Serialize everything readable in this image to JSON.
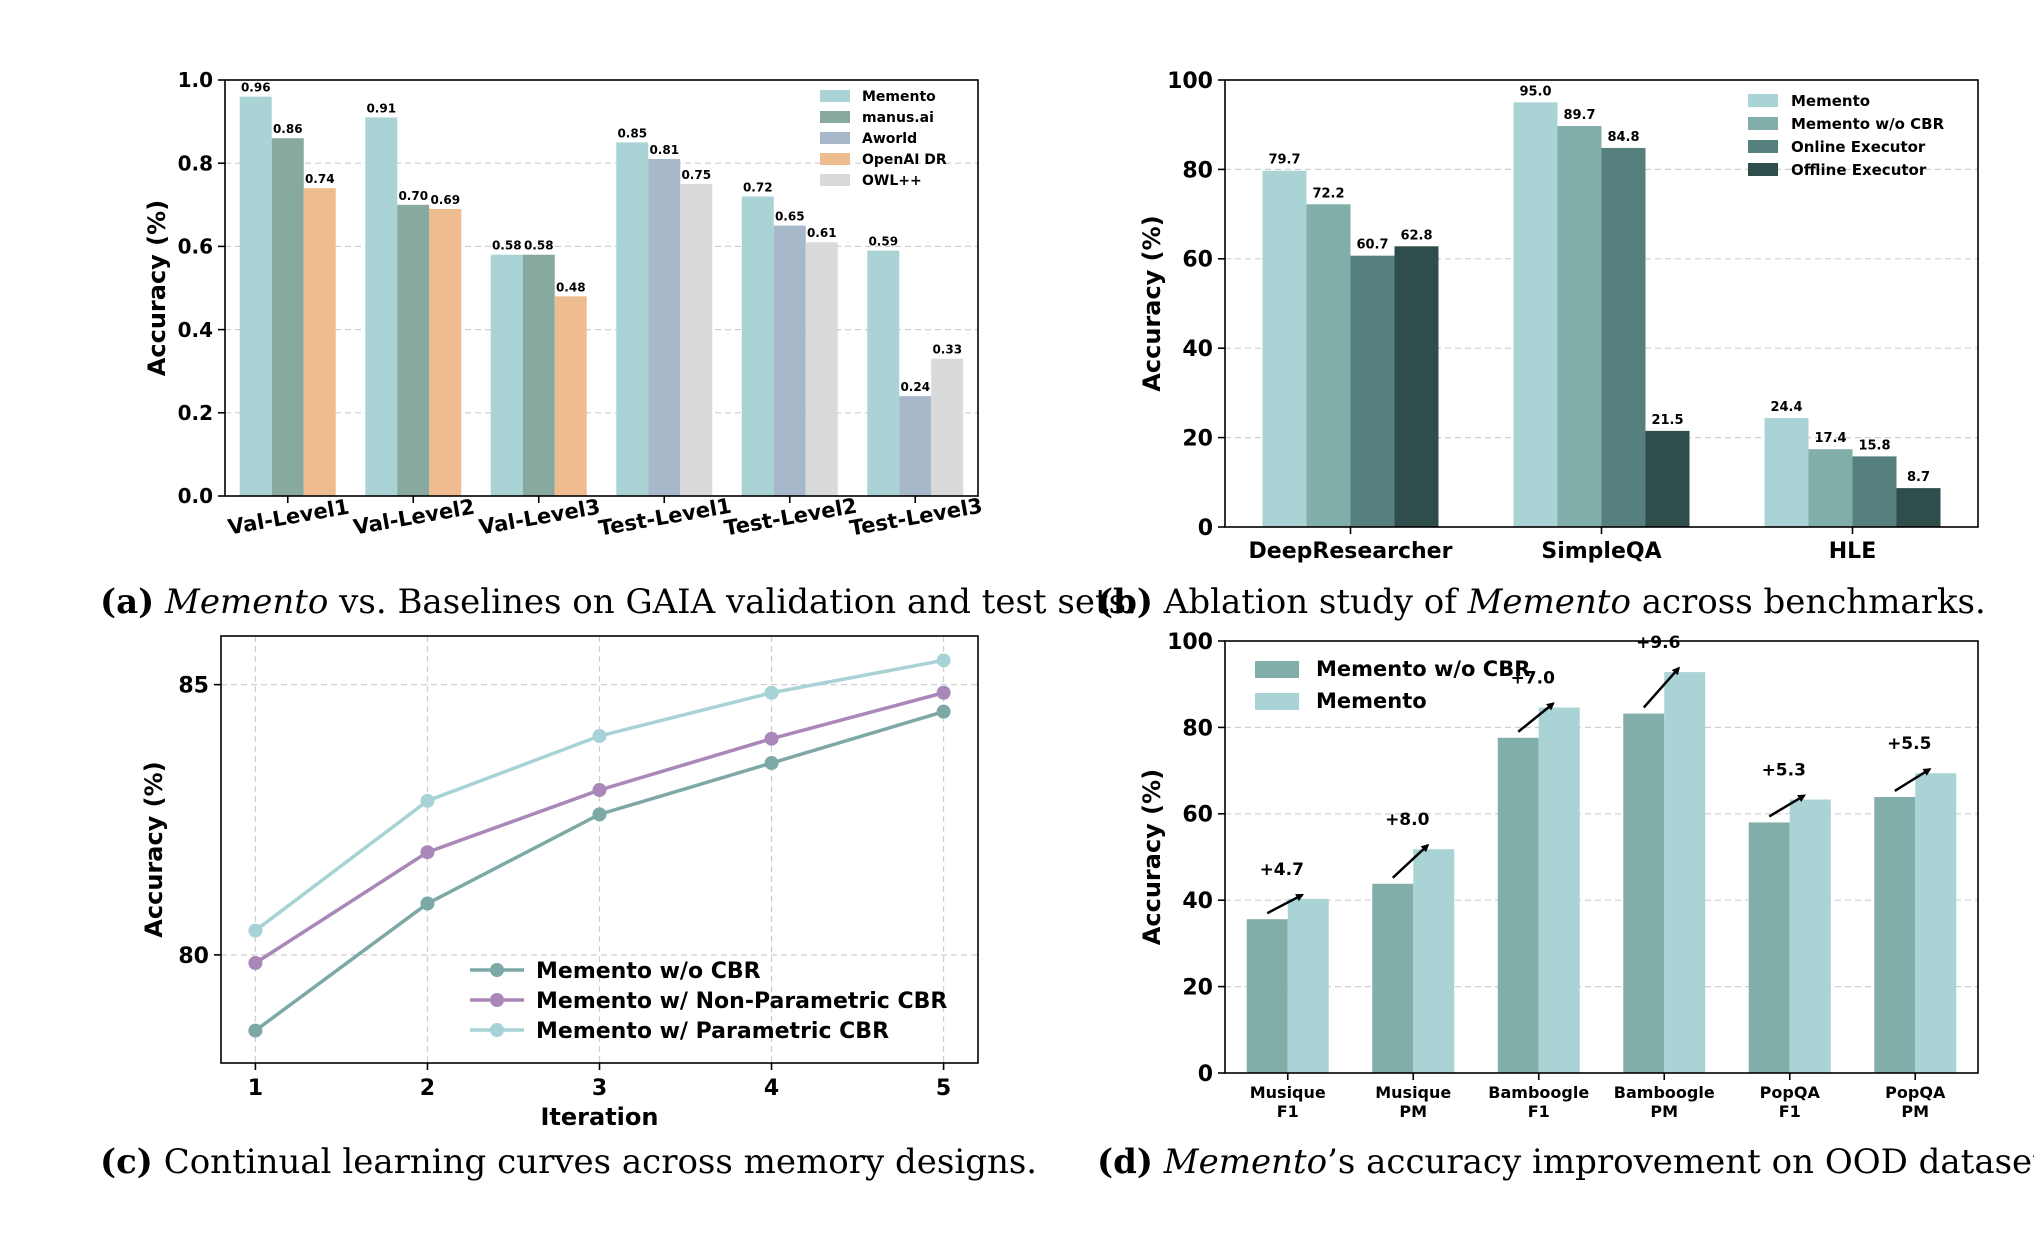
{
  "colors": {
    "memento": "#a9d3d5",
    "manus": "#88a9a0",
    "aworld": "#a6b8c9",
    "openai": "#eebc8f",
    "owl": "#d9dadc",
    "wo_cbr_b": "#82aeaa",
    "online": "#56807d",
    "offline": "#2f4d4b",
    "wo_cbr_d": "#82aeaa",
    "line_wo": "#7ca9a5",
    "line_np": "#a987b8",
    "line_p": "#a7d2d6"
  },
  "captions": {
    "a": {
      "label": "(a)",
      "em": "Memento",
      "rest": " vs. Baselines on GAIA validation and test sets."
    },
    "b": {
      "label": "(b)",
      "pre": " Ablation study of ",
      "em": "Memento",
      "rest": " across benchmarks."
    },
    "c": {
      "label": "(c)",
      "rest": " Continual learning curves across memory designs."
    },
    "d": {
      "label": "(d)",
      "em": "Memento",
      "rest": "’s accuracy improvement on OOD datasets."
    }
  },
  "chart_data": [
    {
      "id": "a",
      "type": "bar",
      "ylabel": "Accuracy (%)",
      "ylim": [
        0,
        1.0
      ],
      "yticks": [
        "0.0",
        "0.2",
        "0.4",
        "0.6",
        "0.8",
        "1.0"
      ],
      "grid": true,
      "legend_position": "top-right",
      "categories": [
        "Val-Level1",
        "Val-Level2",
        "Val-Level3",
        "Test-Level1",
        "Test-Level2",
        "Test-Level3"
      ],
      "series": [
        {
          "name": "Memento",
          "color_key": "memento",
          "values": [
            0.96,
            0.91,
            0.58,
            0.85,
            0.72,
            0.59
          ],
          "labels": [
            "0.96",
            "0.91",
            "0.58",
            "0.85",
            "0.72",
            "0.59"
          ]
        },
        {
          "name": "manus.ai",
          "color_key": "manus",
          "values": [
            0.86,
            0.7,
            0.58,
            null,
            null,
            null
          ],
          "labels": [
            "0.86",
            "0.70",
            "0.58",
            "",
            "",
            ""
          ]
        },
        {
          "name": "Aworld",
          "color_key": "aworld",
          "values": [
            null,
            null,
            null,
            0.81,
            0.65,
            0.24
          ],
          "labels": [
            "",
            "",
            "",
            "0.81",
            "0.65",
            "0.24"
          ]
        },
        {
          "name": "OpenAI DR",
          "color_key": "openai",
          "values": [
            0.74,
            0.69,
            0.48,
            null,
            null,
            null
          ],
          "labels": [
            "0.74",
            "0.69",
            "0.48",
            "",
            "",
            ""
          ]
        },
        {
          "name": "OWL++",
          "color_key": "owl",
          "values": [
            null,
            null,
            null,
            0.75,
            0.61,
            0.33
          ],
          "labels": [
            "",
            "",
            "",
            "0.75",
            "0.61",
            "0.33"
          ]
        }
      ],
      "layout_slots": [
        [
          "Memento",
          "manus.ai",
          "OpenAI DR"
        ],
        [
          "Memento",
          "manus.ai",
          "OpenAI DR"
        ],
        [
          "Memento",
          "manus.ai",
          "OpenAI DR"
        ],
        [
          "Memento",
          "Aworld",
          "OWL++"
        ],
        [
          "Memento",
          "Aworld",
          "OWL++"
        ],
        [
          "Memento",
          "Aworld",
          "OWL++"
        ]
      ]
    },
    {
      "id": "b",
      "type": "bar",
      "ylabel": "Accuracy (%)",
      "ylim": [
        0,
        100
      ],
      "yticks": [
        "0",
        "20",
        "40",
        "60",
        "80",
        "100"
      ],
      "grid": true,
      "legend_position": "top-right",
      "categories": [
        "DeepResearcher",
        "SimpleQA",
        "HLE"
      ],
      "series": [
        {
          "name": "Memento",
          "color_key": "memento",
          "values": [
            79.7,
            95.0,
            24.4
          ],
          "labels": [
            "79.7",
            "95.0",
            "24.4"
          ]
        },
        {
          "name": "Memento w/o CBR",
          "color_key": "wo_cbr_b",
          "values": [
            72.2,
            89.7,
            17.4
          ],
          "labels": [
            "72.2",
            "89.7",
            "17.4"
          ]
        },
        {
          "name": "Online Executor",
          "color_key": "online",
          "values": [
            60.7,
            84.8,
            15.8
          ],
          "labels": [
            "60.7",
            "84.8",
            "15.8"
          ]
        },
        {
          "name": "Offline Executor",
          "color_key": "offline",
          "values": [
            62.8,
            21.5,
            8.7
          ],
          "labels": [
            "62.8",
            "21.5",
            "8.7"
          ]
        }
      ]
    },
    {
      "id": "c",
      "type": "line",
      "xlabel": "Iteration",
      "ylabel": "Accuracy (%)",
      "x": [
        1,
        2,
        3,
        4,
        5
      ],
      "xticks": [
        "1",
        "2",
        "3",
        "4",
        "5"
      ],
      "ylim": [
        78.0,
        85.9
      ],
      "yticks": [
        {
          "v": 80,
          "label": "80"
        },
        {
          "v": 85,
          "label": "85"
        }
      ],
      "grid": true,
      "legend_position": "lower-right",
      "series": [
        {
          "name": "Memento w/o CBR",
          "color_key": "line_wo",
          "values": [
            78.6,
            80.95,
            82.6,
            83.55,
            84.5
          ]
        },
        {
          "name": "Memento w/ Non-Parametric CBR",
          "color_key": "line_np",
          "values": [
            79.85,
            81.9,
            83.05,
            84.0,
            84.85
          ]
        },
        {
          "name": "Memento w/ Parametric CBR",
          "color_key": "line_p",
          "values": [
            80.45,
            82.85,
            84.05,
            84.85,
            85.45
          ]
        }
      ]
    },
    {
      "id": "d",
      "type": "bar",
      "ylabel": "Accuracy (%)",
      "ylim": [
        0,
        100
      ],
      "yticks": [
        "0",
        "20",
        "40",
        "60",
        "80",
        "100"
      ],
      "grid": true,
      "legend_position": "top-left",
      "categories": [
        [
          "Musique",
          "F1"
        ],
        [
          "Musique",
          "PM"
        ],
        [
          "Bamboogle",
          "F1"
        ],
        [
          "Bamboogle",
          "PM"
        ],
        [
          "PopQA",
          "F1"
        ],
        [
          "PopQA",
          "PM"
        ]
      ],
      "series": [
        {
          "name": "Memento w/o CBR",
          "color_key": "wo_cbr_d",
          "values": [
            35.6,
            43.8,
            77.6,
            83.2,
            58.0,
            63.9
          ]
        },
        {
          "name": "Memento",
          "color_key": "memento",
          "values": [
            40.3,
            51.8,
            84.6,
            92.8,
            63.3,
            69.4
          ]
        }
      ],
      "improvements": [
        "+4.7",
        "+8.0",
        "+7.0",
        "+9.6",
        "+5.3",
        "+5.5"
      ]
    }
  ]
}
